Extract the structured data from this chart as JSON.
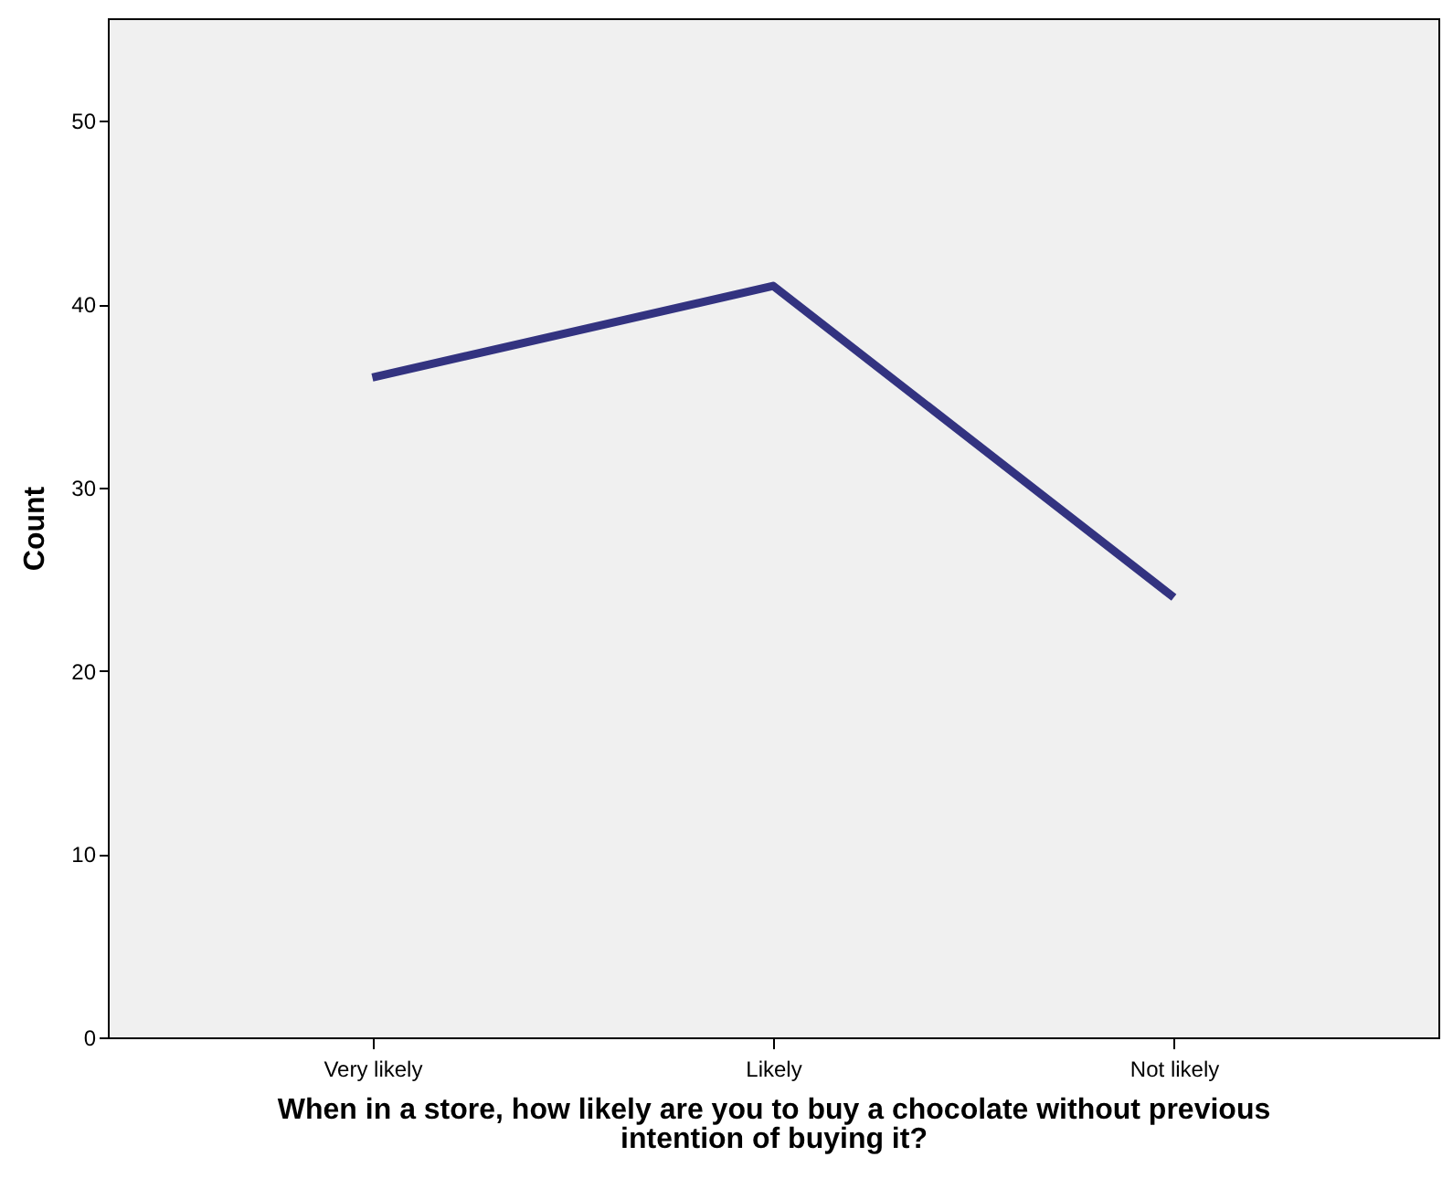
{
  "chart_data": {
    "type": "line",
    "xlabel": "When in a store, how likely are you to buy a chocolate without previous intention of buying it?",
    "ylabel": "Count",
    "categories": [
      "Very likely",
      "Likely",
      "Not likely"
    ],
    "series": [
      {
        "color": "#333380",
        "values": [
          36,
          41,
          24
        ]
      }
    ],
    "ylim": [
      0,
      55.6
    ],
    "yticks": [
      0,
      10,
      20,
      30,
      40,
      50
    ],
    "grid": false,
    "marker": "none",
    "line_style": "solid"
  }
}
